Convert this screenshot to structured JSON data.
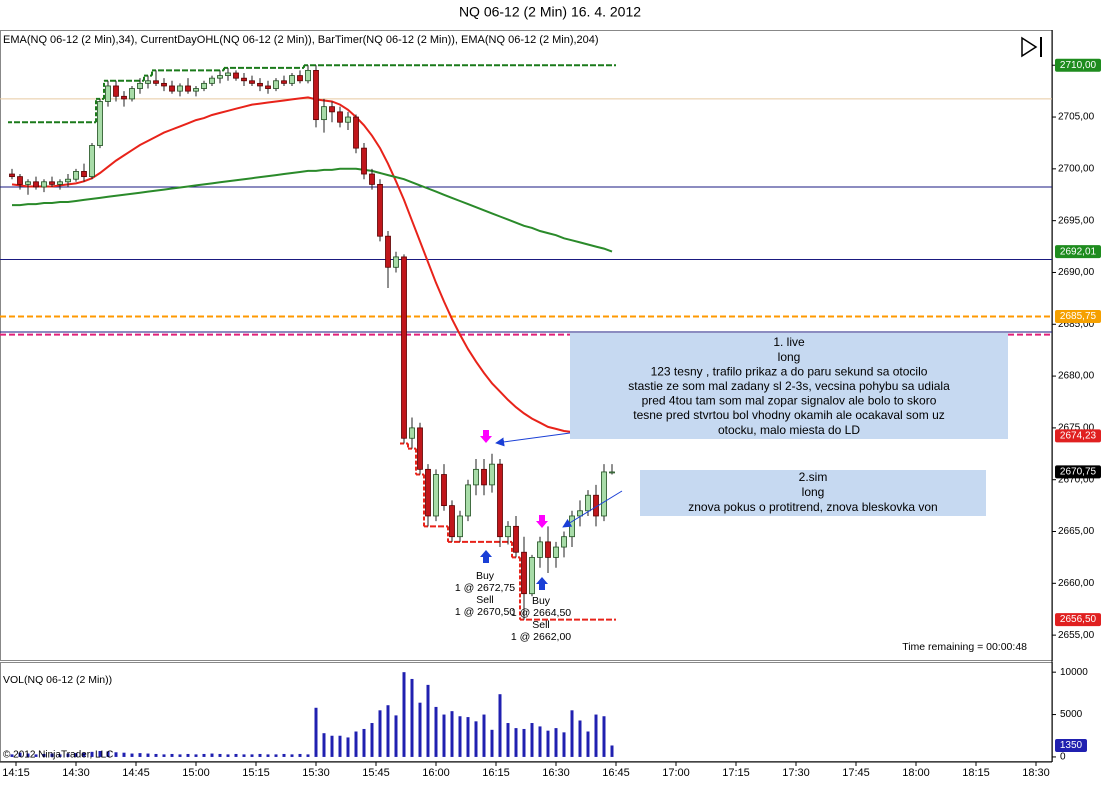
{
  "chart_data": [
    {
      "type": "candlestick",
      "title": "NQ 06-12 (2 Min)  16. 4. 2012",
      "subtitle": "EMA(NQ 06-12 (2 Min),34), CurrentDayOHL(NQ 06-12 (2 Min)), BarTimer(NQ 06-12 (2 Min)), EMA(NQ 06-12 (2 Min),204)",
      "x": [
        "14:14",
        "14:16",
        "14:18",
        "14:20",
        "14:22",
        "14:24",
        "14:26",
        "14:28",
        "14:30",
        "14:32",
        "14:34",
        "14:36",
        "14:38",
        "14:40",
        "14:42",
        "14:44",
        "14:46",
        "14:48",
        "14:50",
        "14:52",
        "14:54",
        "14:56",
        "14:58",
        "15:00",
        "15:02",
        "15:04",
        "15:06",
        "15:08",
        "15:10",
        "15:12",
        "15:14",
        "15:16",
        "15:18",
        "15:20",
        "15:22",
        "15:24",
        "15:26",
        "15:28",
        "15:30",
        "15:32",
        "15:34",
        "15:36",
        "15:38",
        "15:40",
        "15:42",
        "15:44",
        "15:46",
        "15:48",
        "15:50",
        "15:52",
        "15:54",
        "15:56",
        "15:58",
        "16:00",
        "16:02",
        "16:04",
        "16:06",
        "16:08",
        "16:10",
        "16:12",
        "16:14",
        "16:16",
        "16:18",
        "16:20",
        "16:22",
        "16:24",
        "16:26",
        "16:28",
        "16:30",
        "16:32",
        "16:34",
        "16:36",
        "16:38",
        "16:40",
        "16:42",
        "16:44"
      ],
      "open": [
        2699.5,
        2699.25,
        2698.5,
        2698.75,
        2698.25,
        2698.75,
        2698.5,
        2698.75,
        2699,
        2699.75,
        2699.25,
        2702.25,
        2706.5,
        2708,
        2707,
        2706.75,
        2707.75,
        2708.25,
        2708.5,
        2708.25,
        2708,
        2707.5,
        2708,
        2707.5,
        2707.75,
        2708.25,
        2708.75,
        2709,
        2709.25,
        2708.75,
        2708.5,
        2708.25,
        2708,
        2707.75,
        2708.5,
        2708.25,
        2709,
        2708.5,
        2709.5,
        2704.75,
        2706,
        2705.5,
        2704.5,
        2705,
        2702,
        2699.5,
        2698.5,
        2693.5,
        2690.5,
        2691.5,
        2674,
        2675,
        2671,
        2666.5,
        2670.5,
        2667.5,
        2664.5,
        2666.5,
        2669.5,
        2671,
        2669.5,
        2671.5,
        2664.5,
        2665.5,
        2663,
        2659,
        2662.5,
        2664,
        2662.5,
        2663.5,
        2664.5,
        2666.5,
        2667,
        2668.5,
        2666.5,
        2670.75
      ],
      "high": [
        2700,
        2699.5,
        2699,
        2699.25,
        2699,
        2699.25,
        2699,
        2699.5,
        2700,
        2700.5,
        2702.5,
        2706.75,
        2708.5,
        2708.5,
        2707.5,
        2708,
        2708.75,
        2709,
        2709.5,
        2708.75,
        2708.5,
        2708.25,
        2708.75,
        2708,
        2708.5,
        2709,
        2709.5,
        2709.75,
        2709.5,
        2709.25,
        2709,
        2708.75,
        2708.5,
        2708.75,
        2709,
        2709.25,
        2709.5,
        2710,
        2710,
        2706.75,
        2706.5,
        2706,
        2705.5,
        2705.25,
        2702.5,
        2700,
        2699,
        2694,
        2692,
        2691.75,
        2676,
        2675.5,
        2671.5,
        2671,
        2671.5,
        2668,
        2667,
        2670,
        2672,
        2672,
        2672.5,
        2672,
        2666,
        2666.5,
        2664.5,
        2662.75,
        2664.5,
        2665.5,
        2664,
        2665,
        2667,
        2668,
        2669,
        2669.5,
        2671.5,
        2671.5
      ],
      "low": [
        2699,
        2698,
        2697.5,
        2698,
        2697.75,
        2698.25,
        2698,
        2698.25,
        2698.75,
        2698.75,
        2699,
        2702,
        2706,
        2706.5,
        2706,
        2706.5,
        2707.25,
        2707.75,
        2708,
        2707.5,
        2707.25,
        2707,
        2707.25,
        2707,
        2707.5,
        2708,
        2708.25,
        2708.5,
        2708.5,
        2708,
        2708,
        2707.5,
        2707.25,
        2707.5,
        2708,
        2708,
        2708.25,
        2708.25,
        2704,
        2703.5,
        2704.5,
        2704,
        2703.75,
        2701.5,
        2699,
        2698,
        2693,
        2688.5,
        2690,
        2673.5,
        2673,
        2670.5,
        2665.5,
        2666,
        2667,
        2664,
        2664,
        2666,
        2668.5,
        2668.5,
        2668.75,
        2663.5,
        2663.75,
        2662.5,
        2656.5,
        2658.75,
        2661.5,
        2661,
        2661.5,
        2662.5,
        2663.5,
        2665.5,
        2666.5,
        2665.5,
        2666,
        2670.5
      ],
      "close": [
        2699.25,
        2698.5,
        2698.75,
        2698.25,
        2698.75,
        2698.5,
        2698.75,
        2699,
        2699.75,
        2699.25,
        2702.25,
        2706.5,
        2708,
        2707,
        2706.75,
        2707.75,
        2708.25,
        2708.5,
        2708.25,
        2708,
        2707.5,
        2708,
        2707.5,
        2707.75,
        2708.25,
        2708.75,
        2709,
        2709.25,
        2708.75,
        2708.5,
        2708.25,
        2708,
        2707.75,
        2708.5,
        2708.25,
        2709,
        2708.5,
        2709.5,
        2704.75,
        2706,
        2705.5,
        2704.5,
        2705,
        2702,
        2699.5,
        2698.5,
        2693.5,
        2690.5,
        2691.5,
        2674,
        2675,
        2671,
        2666.5,
        2670.5,
        2667.5,
        2664.5,
        2666.5,
        2669.5,
        2671,
        2669.5,
        2671.5,
        2664.5,
        2665.5,
        2663,
        2659,
        2662.5,
        2664,
        2662.5,
        2663.5,
        2664.5,
        2666.5,
        2667,
        2668.5,
        2666.5,
        2670.75,
        2670.75
      ],
      "up_color": "#a8dca8",
      "down_color": "#c0161b",
      "series": [
        {
          "color": "#e8231a",
          "values": [
            2698.5,
            2698.4,
            2698.3,
            2698.3,
            2698.3,
            2698.3,
            2698.4,
            2698.5,
            2698.6,
            2698.8,
            2699.1,
            2699.6,
            2700.2,
            2700.8,
            2701.3,
            2701.8,
            2702.3,
            2702.7,
            2703.1,
            2703.5,
            2703.8,
            2704.1,
            2704.4,
            2704.7,
            2704.9,
            2705.2,
            2705.4,
            2705.6,
            2705.8,
            2706,
            2706.2,
            2706.3,
            2706.4,
            2706.5,
            2706.6,
            2706.7,
            2706.8,
            2706.9,
            2706.7,
            2706.6,
            2706.5,
            2706.2,
            2705.7,
            2705,
            2704.2,
            2703.2,
            2702,
            2700.5,
            2698.8,
            2697,
            2695,
            2693,
            2691,
            2689,
            2687.2,
            2685.5,
            2684,
            2682.6,
            2681.4,
            2680.3,
            2679.3,
            2678.5,
            2677.7,
            2677,
            2676.4,
            2675.9,
            2675.5,
            2675.1,
            2674.9,
            2674.7,
            2674.6,
            2674.5,
            2674.4,
            2674.3,
            2674.25,
            2674.23
          ]
        },
        {
          "color": "#2a8a2a",
          "values": [
            2696.5,
            2696.5,
            2696.6,
            2696.6,
            2696.7,
            2696.7,
            2696.8,
            2696.8,
            2696.9,
            2697,
            2697.1,
            2697.2,
            2697.3,
            2697.4,
            2697.5,
            2697.6,
            2697.7,
            2697.8,
            2697.9,
            2698,
            2698.1,
            2698.2,
            2698.3,
            2698.4,
            2698.5,
            2698.6,
            2698.7,
            2698.8,
            2698.9,
            2699,
            2699.1,
            2699.2,
            2699.3,
            2699.4,
            2699.5,
            2699.6,
            2699.7,
            2699.8,
            2699.8,
            2699.9,
            2699.9,
            2700,
            2700,
            2700,
            2699.9,
            2699.8,
            2699.6,
            2699.4,
            2699.2,
            2699,
            2698.7,
            2698.4,
            2698.1,
            2697.8,
            2697.5,
            2697.2,
            2696.9,
            2696.6,
            2696.3,
            2696,
            2695.7,
            2695.4,
            2695.1,
            2694.8,
            2694.5,
            2694.3,
            2694,
            2693.8,
            2693.6,
            2693.3,
            2693.1,
            2692.9,
            2692.7,
            2692.5,
            2692.3,
            2692.01
          ]
        }
      ],
      "step_lines": [
        {
          "color": "#1a7a1a",
          "values": [
            2704.5,
            2704.5,
            2704.5,
            2704.5,
            2704.5,
            2704.5,
            2704.5,
            2704.5,
            2704.5,
            2704.5,
            2704.5,
            2706.75,
            2708.5,
            2708.5,
            2708.5,
            2708.5,
            2708.5,
            2709,
            2709.5,
            2709.5,
            2709.5,
            2709.5,
            2709.5,
            2709.5,
            2709.5,
            2709.5,
            2709.5,
            2709.75,
            2709.75,
            2709.75,
            2709.75,
            2709.75,
            2709.75,
            2709.75,
            2709.75,
            2709.75,
            2709.75,
            2710,
            2710,
            2710,
            2710,
            2710,
            2710,
            2710,
            2710,
            2710,
            2710,
            2710,
            2710,
            2710,
            2710,
            2710,
            2710,
            2710,
            2710,
            2710,
            2710,
            2710,
            2710,
            2710,
            2710,
            2710,
            2710,
            2710,
            2710,
            2710,
            2710,
            2710,
            2710,
            2710,
            2710,
            2710,
            2710,
            2710,
            2710,
            2710
          ]
        },
        {
          "color": "#e8231a",
          "values": [
            null,
            null,
            null,
            null,
            null,
            null,
            null,
            null,
            null,
            null,
            null,
            null,
            null,
            null,
            null,
            null,
            null,
            null,
            null,
            null,
            null,
            null,
            null,
            null,
            null,
            null,
            null,
            null,
            null,
            null,
            null,
            null,
            null,
            null,
            null,
            null,
            null,
            null,
            null,
            null,
            null,
            null,
            null,
            null,
            null,
            null,
            null,
            null,
            null,
            2673.5,
            2673,
            2670.5,
            2665.5,
            2665.5,
            2665.5,
            2664,
            2664,
            2664,
            2664,
            2664,
            2664,
            2664,
            2664,
            2662.5,
            2656.5,
            2656.5,
            2656.5,
            2656.5,
            2656.5,
            2656.5,
            2656.5,
            2656.5,
            2656.5,
            2656.5,
            2656.5,
            2656.5
          ]
        }
      ],
      "hlines": [
        {
          "value": 2706.75,
          "color": "#e6c9a0",
          "dashed": false
        },
        {
          "value": 2698.25,
          "color": "#1a1a80",
          "dashed": false
        },
        {
          "value": 2691.25,
          "color": "#1a1a80",
          "dashed": false
        },
        {
          "value": 2684.25,
          "color": "#1a1a80",
          "dashed": false
        },
        {
          "value": 2685.75,
          "color": "#ff9900",
          "dashed": true
        },
        {
          "value": 2684,
          "color": "#e0207a",
          "dashed": true
        }
      ],
      "price_markers": [
        {
          "value": 2710,
          "label": "2710,00",
          "color": "#1e8c1e"
        },
        {
          "value": 2692.01,
          "label": "2692,01",
          "color": "#1e8c1e"
        },
        {
          "value": 2685.75,
          "label": "2685,75",
          "color": "#f5a000"
        },
        {
          "value": 2674.23,
          "label": "2674,23",
          "color": "#e02020"
        },
        {
          "value": 2670.75,
          "label": "2670,75",
          "color": "#000000"
        },
        {
          "value": 2656.5,
          "label": "2656,50",
          "color": "#e02020"
        }
      ],
      "ylim": [
        2652.6,
        2713.4
      ],
      "yticks": [
        {
          "value": 2655,
          "label": "2655,00"
        },
        {
          "value": 2660,
          "label": "2660,00"
        },
        {
          "value": 2665,
          "label": "2665,00"
        },
        {
          "value": 2670,
          "label": "2670,00"
        },
        {
          "value": 2675,
          "label": "2675,00"
        },
        {
          "value": 2680,
          "label": "2680,00"
        },
        {
          "value": 2685,
          "label": "2685,00"
        },
        {
          "value": 2690,
          "label": "2690,00"
        },
        {
          "value": 2695,
          "label": "2695,00"
        },
        {
          "value": 2700,
          "label": "2700,00"
        },
        {
          "value": 2705,
          "label": "2705,00"
        },
        {
          "value": 2710,
          "label": "2710,00"
        }
      ],
      "xlim": [
        "14:11",
        "18:34"
      ],
      "xticks": [
        "14:15",
        "14:30",
        "14:45",
        "15:00",
        "15:15",
        "15:30",
        "15:45",
        "16:00",
        "16:15",
        "16:30",
        "16:45",
        "17:00",
        "17:15",
        "17:30",
        "17:45",
        "18:00",
        "18:15",
        "18:30"
      ],
      "annotations": [
        {
          "lines": [
            "1. live",
            "long",
            "123 tesny , trafilo prikaz a do paru sekund sa otocilo",
            "stastie ze som mal zadany sl 2-3s, vecsina pohybu sa udiala",
            "pred 4tou tam som mal zopar signalov ale bolo to skoro",
            "tesne pred stvrtou bol vhodny okamih ale ocakaval som uz",
            "otocku, malo miesta do LD"
          ]
        },
        {
          "lines": [
            "2.sim",
            "long",
            "znova pokus o protitrend, znova bleskovka von"
          ]
        }
      ],
      "executions": [
        {
          "lines": [
            "Buy",
            "1 @ 2672,75",
            "Sell",
            "1 @ 2670,50"
          ]
        },
        {
          "lines": [
            "Buy",
            "1 @ 2664,50",
            "Sell",
            "1 @ 2662,00"
          ]
        }
      ],
      "timer": "Time remaining = 00:00:48"
    },
    {
      "type": "bar",
      "title": "VOL(NQ 06-12 (2 Min))",
      "footer": "© 2012 NinjaTrader, LLC",
      "color": "#2020b0",
      "values": [
        300,
        500,
        400,
        300,
        350,
        400,
        300,
        400,
        450,
        500,
        600,
        700,
        650,
        550,
        500,
        400,
        450,
        400,
        350,
        300,
        350,
        300,
        350,
        300,
        350,
        400,
        350,
        300,
        350,
        300,
        300,
        350,
        300,
        300,
        350,
        300,
        350,
        300,
        5800,
        2800,
        2500,
        2500,
        2300,
        3000,
        3300,
        4000,
        5500,
        6100,
        4900,
        10000,
        9200,
        6400,
        8500,
        5900,
        5000,
        5400,
        4800,
        4700,
        4200,
        5000,
        3200,
        7400,
        4000,
        3400,
        3300,
        4000,
        3600,
        3100,
        3400,
        2900,
        5500,
        4300,
        3000,
        5000,
        4800,
        1350
      ],
      "ylim": [
        -480,
        11200
      ],
      "yticks": [
        0,
        5000,
        10000
      ]
    }
  ]
}
